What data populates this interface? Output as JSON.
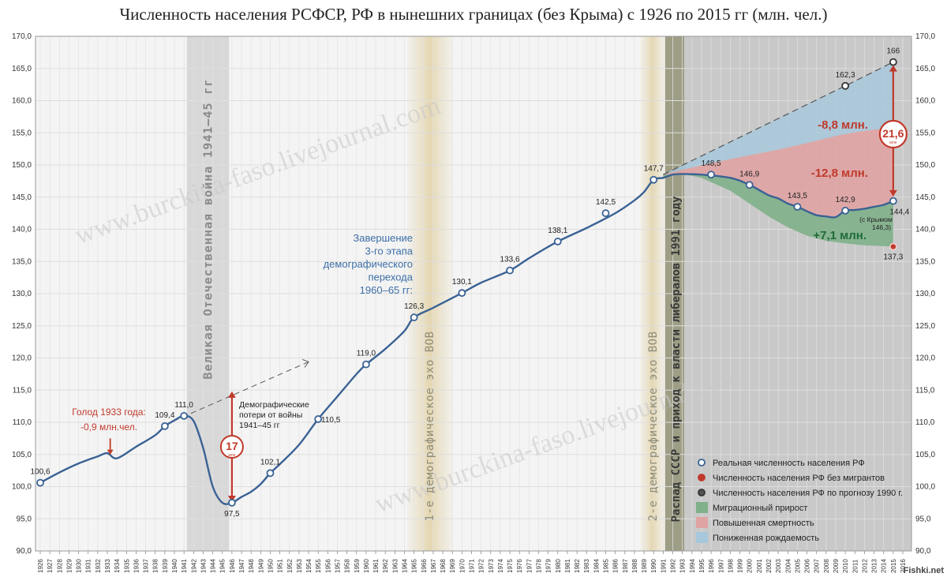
{
  "chart_data": {
    "type": "line",
    "title": "Численность населения РСФСР, РФ в нынешних границах (без Крыма) с 1926 по 2015 гг (млн. чел.)",
    "xlim": [
      1926,
      2016
    ],
    "ylim": [
      90,
      170
    ],
    "y_ticks": [
      "90,0",
      "95,0",
      "100,0",
      "105,0",
      "110,0",
      "115,0",
      "120,0",
      "125,0",
      "130,0",
      "135,0",
      "140,0",
      "145,0",
      "150,0",
      "155,0",
      "160,0",
      "165,0",
      "170,0"
    ],
    "x_ticks": [
      1926,
      1927,
      1928,
      1929,
      1930,
      1931,
      1932,
      1933,
      1934,
      1935,
      1936,
      1937,
      1938,
      1939,
      1940,
      1941,
      1942,
      1943,
      1944,
      1945,
      1946,
      1947,
      1948,
      1949,
      1950,
      1951,
      1952,
      1953,
      1954,
      1955,
      1956,
      1957,
      1958,
      1959,
      1960,
      1961,
      1962,
      1963,
      1964,
      1965,
      1966,
      1967,
      1968,
      1969,
      1970,
      1971,
      1972,
      1973,
      1974,
      1975,
      1976,
      1977,
      1978,
      1979,
      1980,
      1981,
      1982,
      1983,
      1984,
      1985,
      1986,
      1987,
      1988,
      1989,
      1990,
      1991,
      1992,
      1993,
      1994,
      1995,
      1996,
      1997,
      1998,
      1999,
      2000,
      2001,
      2002,
      2003,
      2004,
      2005,
      2006,
      2007,
      2008,
      2009,
      2010,
      2011,
      2012,
      2013,
      2014,
      2015,
      2016
    ],
    "series": [
      {
        "name": "Реальная численность населения РФ",
        "color": "#3a6294",
        "x": [
          1926,
          1928,
          1930,
          1932,
          1933,
          1934,
          1936,
          1938,
          1939,
          1940,
          1941,
          1942,
          1943,
          1944,
          1945,
          1946,
          1947,
          1948,
          1949,
          1950,
          1951,
          1953,
          1955,
          1957,
          1959,
          1960,
          1962,
          1964,
          1965,
          1967,
          1970,
          1972,
          1975,
          1977,
          1980,
          1983,
          1986,
          1988,
          1989,
          1990,
          1991,
          1992,
          1993,
          1995,
          1998,
          2000,
          2002,
          2003,
          2004,
          2005,
          2006,
          2007,
          2008,
          2009,
          2010,
          2011,
          2012,
          2013,
          2014,
          2015
        ],
        "y": [
          100.6,
          102.2,
          103.6,
          104.7,
          105.2,
          104.4,
          106.2,
          108.0,
          109.4,
          110.3,
          111.0,
          110.2,
          106.0,
          100.0,
          97.5,
          97.5,
          98.4,
          99.2,
          100.4,
          102.1,
          103.5,
          106.5,
          110.5,
          114.0,
          117.5,
          119.0,
          121.4,
          124.2,
          126.3,
          127.8,
          130.1,
          131.7,
          133.6,
          135.5,
          138.1,
          140.2,
          142.5,
          144.5,
          145.8,
          147.7,
          148.0,
          148.5,
          148.6,
          148.5,
          148.0,
          146.9,
          145.3,
          144.8,
          144.0,
          143.5,
          142.8,
          142.2,
          142.0,
          141.9,
          142.9,
          143.0,
          143.2,
          143.5,
          143.8,
          144.4
        ]
      },
      {
        "name": "Численность населения РФ без мигрантов",
        "color": "#c0392b",
        "x": [
          1991,
          1993,
          1995,
          1998,
          2000,
          2002,
          2004,
          2006,
          2008,
          2010,
          2012,
          2014,
          2015
        ],
        "y": [
          148.5,
          148.6,
          148.0,
          146.0,
          144.0,
          142.0,
          140.3,
          139.0,
          138.2,
          137.8,
          137.5,
          137.4,
          137.3
        ]
      },
      {
        "name": "Численность населения РФ по прогнозу 1990 г.",
        "color": "#555555",
        "x": [
          1991,
          2010,
          2015
        ],
        "y": [
          148.5,
          162.3,
          166.0
        ]
      }
    ],
    "fills": [
      {
        "name": "Миграционный прирост",
        "color": "#7fb08a"
      },
      {
        "name": "Повышенная смертность",
        "color": "#e0a3a3"
      },
      {
        "name": "Пониженная рождаемость",
        "color": "#a7c8dc"
      }
    ],
    "point_labels": [
      {
        "x": 1926,
        "y": 100.6,
        "text": "100,6"
      },
      {
        "x": 1939,
        "y": 109.4,
        "text": "109,4"
      },
      {
        "x": 1941,
        "y": 111.0,
        "text": "111,0"
      },
      {
        "x": 1946,
        "y": 97.5,
        "text": "97,5"
      },
      {
        "x": 1950,
        "y": 102.1,
        "text": "102,1"
      },
      {
        "x": 1955,
        "y": 110.5,
        "text": "110,5"
      },
      {
        "x": 1960,
        "y": 119.0,
        "text": "119,0"
      },
      {
        "x": 1965,
        "y": 126.3,
        "text": "126,3"
      },
      {
        "x": 1970,
        "y": 130.1,
        "text": "130,1"
      },
      {
        "x": 1975,
        "y": 133.6,
        "text": "133,6"
      },
      {
        "x": 1980,
        "y": 138.1,
        "text": "138,1"
      },
      {
        "x": 1985,
        "y": 142.5,
        "text": "142,5"
      },
      {
        "x": 1990,
        "y": 147.7,
        "text": "147,7"
      },
      {
        "x": 1996,
        "y": 148.5,
        "text": "148,5"
      },
      {
        "x": 2000,
        "y": 146.9,
        "text": "146,9"
      },
      {
        "x": 2005,
        "y": 143.5,
        "text": "143,5"
      },
      {
        "x": 2010,
        "y": 142.9,
        "text": "142,9"
      },
      {
        "x": 2015,
        "y": 144.4,
        "text": "144,4"
      },
      {
        "x": 2010,
        "y": 162.3,
        "text": "162,3"
      },
      {
        "x": 2015,
        "y": 166.0,
        "text": "166"
      },
      {
        "x": 2015,
        "y": 137.3,
        "text": "137,3"
      }
    ],
    "annotations": {
      "war_band": "Великая Отечественная война 1941–45 гг",
      "echo1": "1-е демографическое эхо ВОВ",
      "echo2": "2-е демографическое эхо ВОВ",
      "ussr": "Распад СССР и приход к власти либералов 1991 году",
      "transition": [
        "Завершение",
        "3-го этапа",
        "демографического",
        "перехода",
        "1960–65 гг:"
      ],
      "famine": [
        "Голод 1933 года:",
        "-0,9 млн.чел."
      ],
      "losses": [
        "Демографические",
        "потери от войны",
        "1941–45 гг"
      ],
      "losses_value": "17",
      "losses_unit": "млн",
      "gap_value": "21,6",
      "gap_unit": "млн",
      "crimea_note": [
        "(с Крымом",
        "146,3)"
      ],
      "minus_birth": "-8,8 млн.",
      "minus_death": "-12,8 млн.",
      "plus_migration": "+7,1 млн.",
      "watermark": "www.burckina-faso.livejournal.com",
      "site": "Fishki.net"
    },
    "legend_position": "bottom-right",
    "grid": true
  }
}
